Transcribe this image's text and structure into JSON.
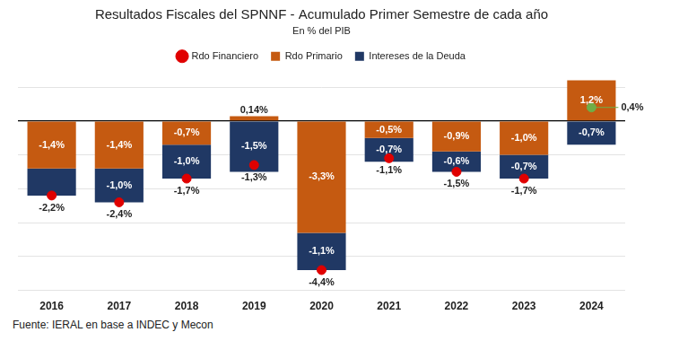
{
  "chart_data": {
    "type": "bar",
    "title": "Resultados Fiscales del SPNNF - Acumulado Primer Semestre de cada año",
    "subtitle": "En % del PIB",
    "source": "Fuente: IERAL en base a INDEC y Mecon",
    "categories": [
      "2016",
      "2017",
      "2018",
      "2019",
      "2020",
      "2021",
      "2022",
      "2023",
      "2024"
    ],
    "series": [
      {
        "name": "Rdo Primario",
        "type": "bar",
        "color": "#c55a11",
        "values": [
          -1.4,
          -1.4,
          -0.7,
          0.14,
          -3.3,
          -0.5,
          -0.9,
          -1.0,
          1.2
        ],
        "value_labels": [
          "-1,4%",
          "-1,4%",
          "-0,7%",
          "0,14%",
          "-3,3%",
          "-0,5%",
          "-0,9%",
          "-1,0%",
          "1,2%"
        ]
      },
      {
        "name": "Intereses de la Deuda",
        "type": "bar",
        "color": "#203864",
        "values": [
          -0.8,
          -1.0,
          -1.0,
          -1.5,
          -1.1,
          -0.7,
          -0.6,
          -0.7,
          -0.7
        ],
        "value_labels": [
          null,
          "-1,0%",
          "-1,0%",
          "-1,5%",
          "-1,1%",
          "-0,7%",
          "-0,6%",
          "-0,7%",
          "-0,7%"
        ]
      },
      {
        "name": "Rdo Financiero",
        "type": "scatter",
        "marker": "circle",
        "colors": [
          "#e00000",
          "#e00000",
          "#e00000",
          "#e00000",
          "#e00000",
          "#e00000",
          "#e00000",
          "#e00000",
          "#70ad47"
        ],
        "values": [
          -2.2,
          -2.4,
          -1.7,
          -1.3,
          -4.4,
          -1.1,
          -1.5,
          -1.7,
          0.4
        ],
        "value_labels": [
          "-2,2%",
          "-2,4%",
          "-1,7%",
          "-1,3%",
          "-4,4%",
          "-1,1%",
          "-1,5%",
          "-1,7%",
          "0,4%"
        ]
      }
    ],
    "stacked": true,
    "data_labels": true,
    "legend": "top",
    "grid": true,
    "tick_labels": "x",
    "ylim": [
      -5,
      1.5
    ],
    "yticks": [
      -5,
      -4,
      -3,
      -2,
      -1,
      0,
      1
    ]
  }
}
